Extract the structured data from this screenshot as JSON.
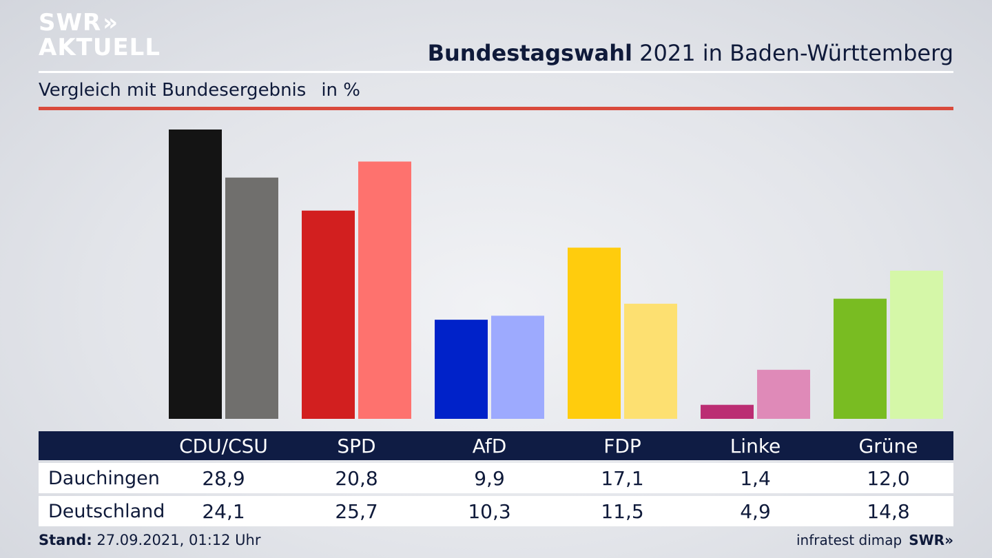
{
  "logo": {
    "line1": "SWR",
    "chevrons": "»",
    "line2": "AKTUELL"
  },
  "header": {
    "title_bold": "Bundestagswahl",
    "title_rest": " 2021 in Baden-Württemberg",
    "subtitle": "Vergleich mit Bundesergebnis",
    "unit": "in %"
  },
  "colors": {
    "cdu": [
      "#141414",
      "#706f6d"
    ],
    "spd": [
      "#d21f1f",
      "#fe726e"
    ],
    "afd": [
      "#0022c9",
      "#9daafe"
    ],
    "fdp": [
      "#ffcc0d",
      "#fde071"
    ],
    "linke": [
      "#bb2d73",
      "#df8ab8"
    ],
    "gruene": [
      "#79bc22",
      "#d5f7a8"
    ]
  },
  "chart_data": {
    "type": "bar",
    "categories": [
      "CDU/CSU",
      "SPD",
      "AfD",
      "FDP",
      "Linke",
      "Grüne"
    ],
    "series": [
      {
        "name": "Dauchingen",
        "values": [
          28.9,
          20.8,
          9.9,
          17.1,
          1.4,
          12.0
        ]
      },
      {
        "name": "Deutschland",
        "values": [
          24.1,
          25.7,
          10.3,
          11.5,
          4.9,
          14.8
        ]
      }
    ],
    "ylim": [
      0,
      28.9
    ],
    "grid": false
  },
  "table": {
    "rows": [
      {
        "label": "Dauchingen",
        "values": [
          "28,9",
          "20,8",
          "9,9",
          "17,1",
          "1,4",
          "12,0"
        ]
      },
      {
        "label": "Deutschland",
        "values": [
          "24,1",
          "25,7",
          "10,3",
          "11,5",
          "4,9",
          "14,8"
        ]
      }
    ]
  },
  "footer": {
    "stand_label": "Stand:",
    "stand_value": " 27.09.2021, 01:12 Uhr",
    "source": "infratest dimap",
    "brand": "SWR»"
  }
}
